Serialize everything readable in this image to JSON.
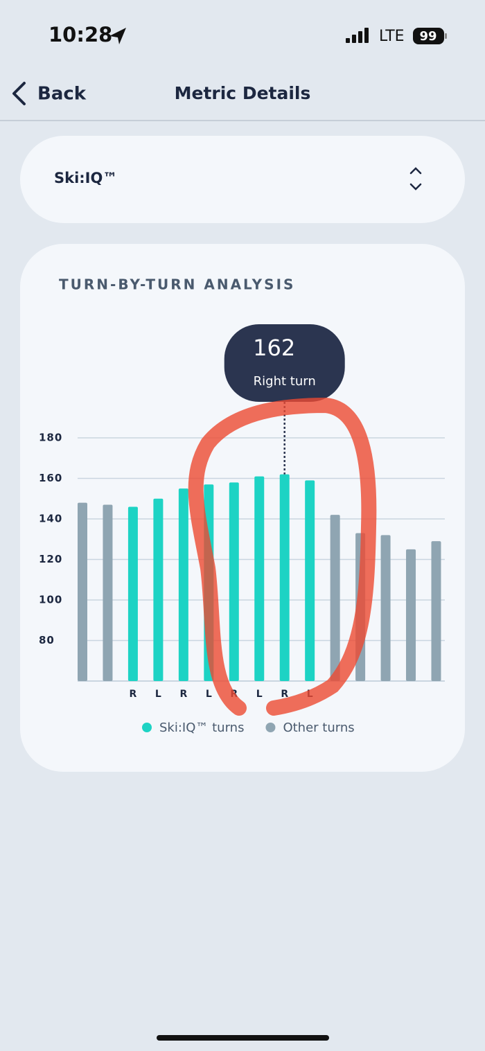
{
  "status_bar": {
    "time": "10:28",
    "network": "LTE",
    "battery": "99"
  },
  "nav": {
    "back": "Back",
    "title": "Metric Details"
  },
  "selector": {
    "label": "Ski:IQ™"
  },
  "card": {
    "title": "TURN-BY-TURN ANALYSIS"
  },
  "chart_data": {
    "type": "bar",
    "categories": [
      null,
      null,
      "R",
      "L",
      "R",
      "L",
      "R",
      "L",
      "R",
      "L",
      null,
      null,
      null,
      null,
      null
    ],
    "series": [
      {
        "name": "Ski:IQ™ turns",
        "color": "#1dd3c4",
        "values": [
          null,
          null,
          146,
          150,
          155,
          157,
          158,
          161,
          162,
          159,
          null,
          null,
          null,
          null,
          null
        ]
      },
      {
        "name": "Other turns",
        "color": "#8fa5b2",
        "values": [
          148,
          147,
          null,
          null,
          null,
          null,
          null,
          null,
          null,
          null,
          142,
          133,
          132,
          125,
          129
        ]
      }
    ],
    "tooltip_label": "Right turn",
    "ylim": [
      60,
      180
    ],
    "yticks": [
      80,
      100,
      120,
      140,
      160,
      180
    ],
    "grid": true
  }
}
